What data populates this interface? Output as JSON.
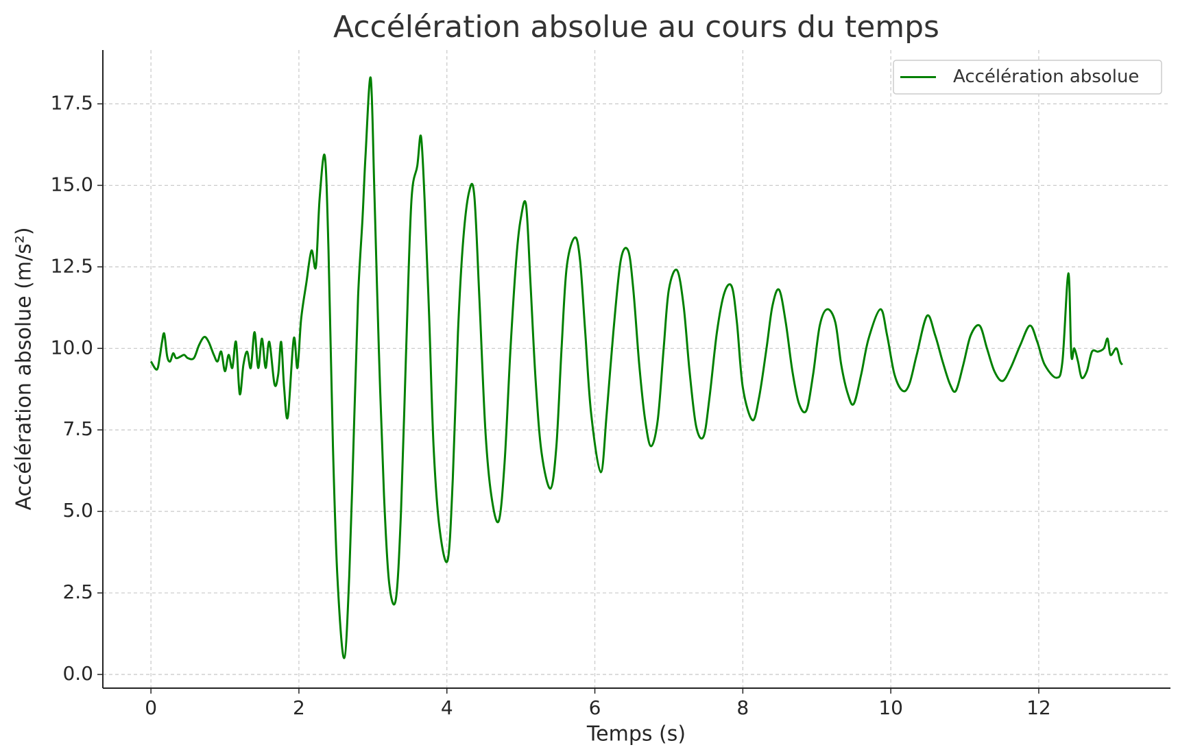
{
  "chart_data": {
    "type": "line",
    "title": "Accélération absolue au cours du temps",
    "xlabel": "Temps (s)",
    "ylabel": "Accélération absolue (m/s²)",
    "x": [
      0,
      0.08,
      0.12,
      0.15,
      0.18,
      0.22,
      0.26,
      0.3,
      0.34,
      0.4,
      0.45,
      0.5,
      0.58,
      0.65,
      0.72,
      0.78,
      0.85,
      0.9,
      0.95,
      1.0,
      1.05,
      1.1,
      1.15,
      1.2,
      1.25,
      1.3,
      1.35,
      1.4,
      1.45,
      1.5,
      1.55,
      1.6,
      1.67,
      1.72,
      1.76,
      1.8,
      1.85,
      1.93,
      1.98,
      2.03,
      2.1,
      2.17,
      2.23,
      2.28,
      2.35,
      2.4,
      2.46,
      2.52,
      2.61,
      2.68,
      2.75,
      2.8,
      2.86,
      2.9,
      2.97,
      3.02,
      3.08,
      3.15,
      3.22,
      3.31,
      3.38,
      3.45,
      3.52,
      3.6,
      3.65,
      3.7,
      3.76,
      3.82,
      3.9,
      4.01,
      4.08,
      4.15,
      4.22,
      4.3,
      4.37,
      4.44,
      4.52,
      4.6,
      4.7,
      4.78,
      4.86,
      4.94,
      5.0,
      5.07,
      5.13,
      5.2,
      5.28,
      5.4,
      5.48,
      5.55,
      5.62,
      5.73,
      5.8,
      5.87,
      5.95,
      6.08,
      6.16,
      6.25,
      6.35,
      6.45,
      6.52,
      6.6,
      6.68,
      6.76,
      6.85,
      6.93,
      7.0,
      7.11,
      7.2,
      7.28,
      7.37,
      7.47,
      7.55,
      7.65,
      7.75,
      7.85,
      7.92,
      8.0,
      8.13,
      8.22,
      8.32,
      8.4,
      8.49,
      8.58,
      8.67,
      8.76,
      8.86,
      8.95,
      9.04,
      9.14,
      9.25,
      9.33,
      9.42,
      9.5,
      9.6,
      9.7,
      9.86,
      9.95,
      10.05,
      10.16,
      10.25,
      10.35,
      10.49,
      10.6,
      10.7,
      10.8,
      10.88,
      10.98,
      11.08,
      11.2,
      11.3,
      11.4,
      11.51,
      11.62,
      11.75,
      11.88,
      11.98,
      12.08,
      12.24,
      12.32,
      12.4,
      12.44,
      12.48,
      12.53,
      12.58,
      12.65,
      12.72,
      12.8,
      12.88,
      12.93,
      12.97,
      13.05,
      13.1,
      13.13
    ],
    "series": [
      {
        "name": "Accélération absolue",
        "color": "#008000",
        "values": [
          9.6,
          9.35,
          9.75,
          10.2,
          10.45,
          9.75,
          9.6,
          9.85,
          9.7,
          9.75,
          9.8,
          9.7,
          9.7,
          10.1,
          10.35,
          10.2,
          9.8,
          9.6,
          9.9,
          9.3,
          9.8,
          9.4,
          10.2,
          8.6,
          9.5,
          9.9,
          9.4,
          10.5,
          9.4,
          10.3,
          9.4,
          10.2,
          8.9,
          9.2,
          10.2,
          8.8,
          7.9,
          10.3,
          9.4,
          10.9,
          12.0,
          13.0,
          12.5,
          14.6,
          15.9,
          13.0,
          7.0,
          3.0,
          0.5,
          3.0,
          8.0,
          11.6,
          14.0,
          15.9,
          18.3,
          14.8,
          10.0,
          5.5,
          2.8,
          2.3,
          5.0,
          10.0,
          14.5,
          15.6,
          16.5,
          14.5,
          11.0,
          7.0,
          4.5,
          3.5,
          6.0,
          10.5,
          13.3,
          14.8,
          14.7,
          11.5,
          7.5,
          5.5,
          4.7,
          6.5,
          10.0,
          12.8,
          14.0,
          14.4,
          12.0,
          9.0,
          6.8,
          5.7,
          7.0,
          10.0,
          12.5,
          13.4,
          12.7,
          10.5,
          8.0,
          6.2,
          8.0,
          10.5,
          12.7,
          13.0,
          11.8,
          9.5,
          7.8,
          7.0,
          7.8,
          10.0,
          11.8,
          12.4,
          11.3,
          9.3,
          7.6,
          7.3,
          8.5,
          10.5,
          11.7,
          11.9,
          10.8,
          8.8,
          7.8,
          8.5,
          10.0,
          11.3,
          11.8,
          10.8,
          9.3,
          8.3,
          8.1,
          9.2,
          10.7,
          11.2,
          10.8,
          9.5,
          8.6,
          8.3,
          9.2,
          10.3,
          11.2,
          10.4,
          9.2,
          8.7,
          8.9,
          9.8,
          11.0,
          10.4,
          9.6,
          8.9,
          8.7,
          9.5,
          10.4,
          10.7,
          10.0,
          9.3,
          9.0,
          9.4,
          10.1,
          10.7,
          10.2,
          9.5,
          9.1,
          9.6,
          12.3,
          9.8,
          10.0,
          9.6,
          9.1,
          9.3,
          9.9,
          9.9,
          10.0,
          10.3,
          9.8,
          10.0,
          9.6,
          9.5
        ]
      }
    ],
    "xlim": [
      -0.65,
      13.78
    ],
    "ylim": [
      -0.42,
      19.15
    ],
    "xticks": [
      0,
      2,
      4,
      6,
      8,
      10,
      12
    ],
    "yticks": [
      {
        "value": 0,
        "label": "0.0"
      },
      2.5,
      {
        "value": 5,
        "label": "5.0"
      },
      7.5,
      {
        "value": 10,
        "label": "10.0"
      },
      12.5,
      {
        "value": 15,
        "label": "15.0"
      },
      17.5
    ],
    "grid": true,
    "legend": "upper right"
  }
}
